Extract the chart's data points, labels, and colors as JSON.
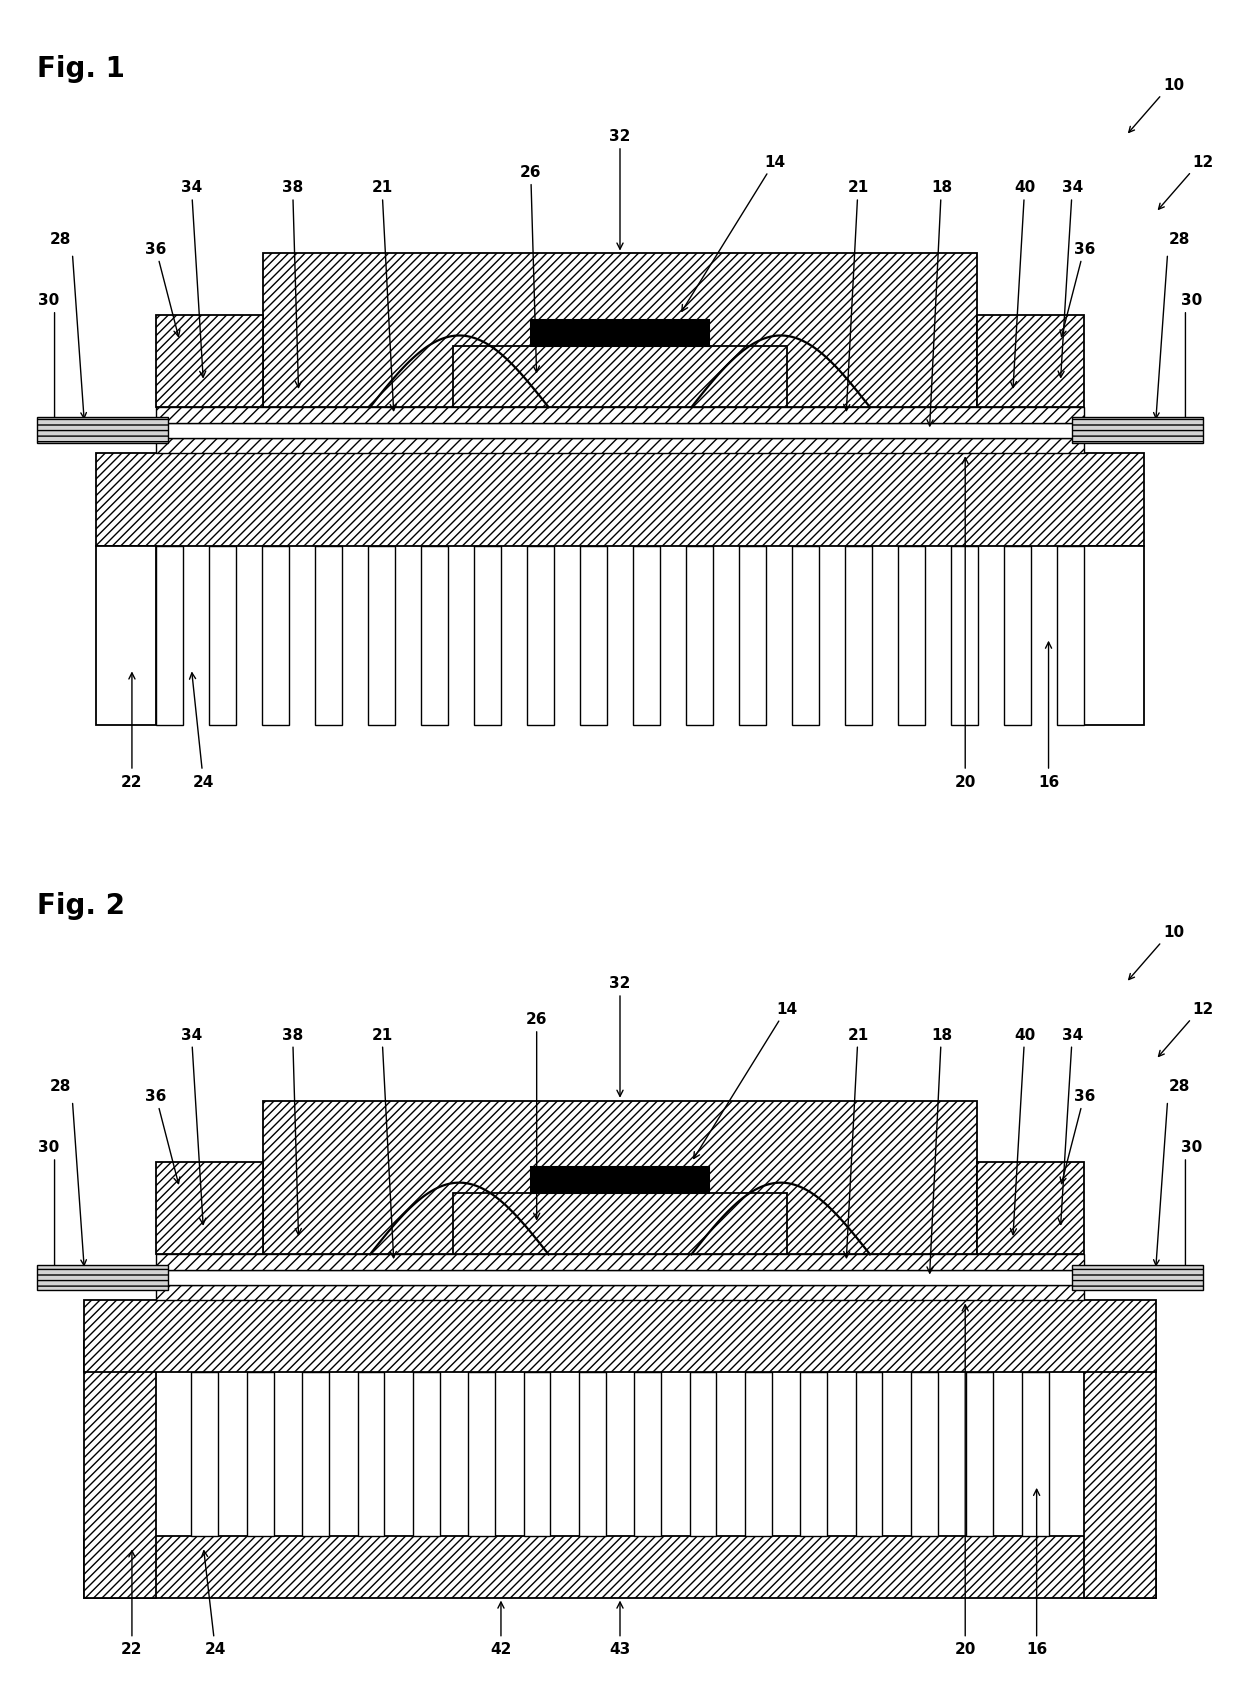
{
  "fig_width": 12.4,
  "fig_height": 17.08,
  "bg_color": "#ffffff",
  "fig1_title": "Fig. 1",
  "fig2_title": "Fig. 2",
  "font_size_title": 20,
  "font_size_label": 11
}
